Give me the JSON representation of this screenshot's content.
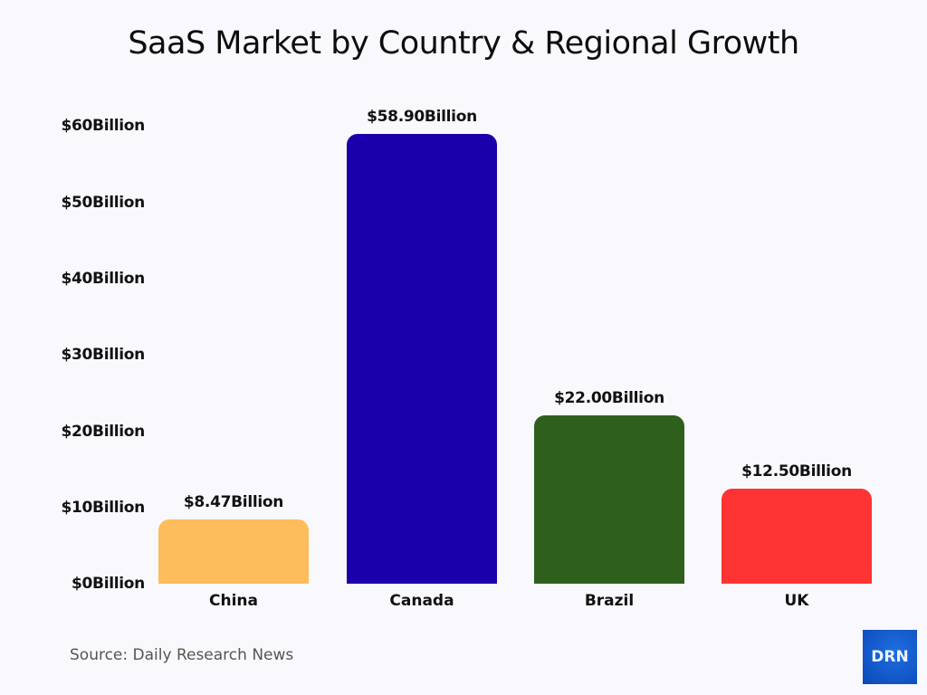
{
  "title": "SaaS Market by Country & Regional Growth",
  "source": "Source: Daily Research News",
  "logo": "DRN",
  "y_ticks": [
    "$0Billion",
    "$10Billion",
    "$20Billion",
    "$30Billion",
    "$40Billion",
    "$50Billion",
    "$60Billion"
  ],
  "bars": [
    {
      "category": "China",
      "label": "$8.47Billion",
      "value": 8.47,
      "color": "#fdbd5c"
    },
    {
      "category": "Canada",
      "label": "$58.90Billion",
      "value": 58.9,
      "color": "#1a00ab"
    },
    {
      "category": "Brazil",
      "label": "$22.00Billion",
      "value": 22.0,
      "color": "#2f5f1c"
    },
    {
      "category": "UK",
      "label": "$12.50Billion",
      "value": 12.5,
      "color": "#fe3333"
    }
  ],
  "chart_data": {
    "type": "bar",
    "title": "SaaS Market by Country & Regional Growth",
    "categories": [
      "China",
      "Canada",
      "Brazil",
      "UK"
    ],
    "values": [
      8.47,
      58.9,
      22.0,
      12.5
    ],
    "data_labels": [
      "$8.47Billion",
      "$58.90Billion",
      "$22.00Billion",
      "$12.50Billion"
    ],
    "colors": [
      "#fdbd5c",
      "#1a00ab",
      "#2f5f1c",
      "#fe3333"
    ],
    "xlabel": "",
    "ylabel": "",
    "unit": "Billion USD",
    "ylim": [
      0,
      60
    ],
    "yticks": [
      0,
      10,
      20,
      30,
      40,
      50,
      60
    ],
    "ytick_labels": [
      "$0Billion",
      "$10Billion",
      "$20Billion",
      "$30Billion",
      "$40Billion",
      "$50Billion",
      "$60Billion"
    ],
    "grid": false,
    "legend": "none",
    "source": "Source: Daily Research News"
  }
}
